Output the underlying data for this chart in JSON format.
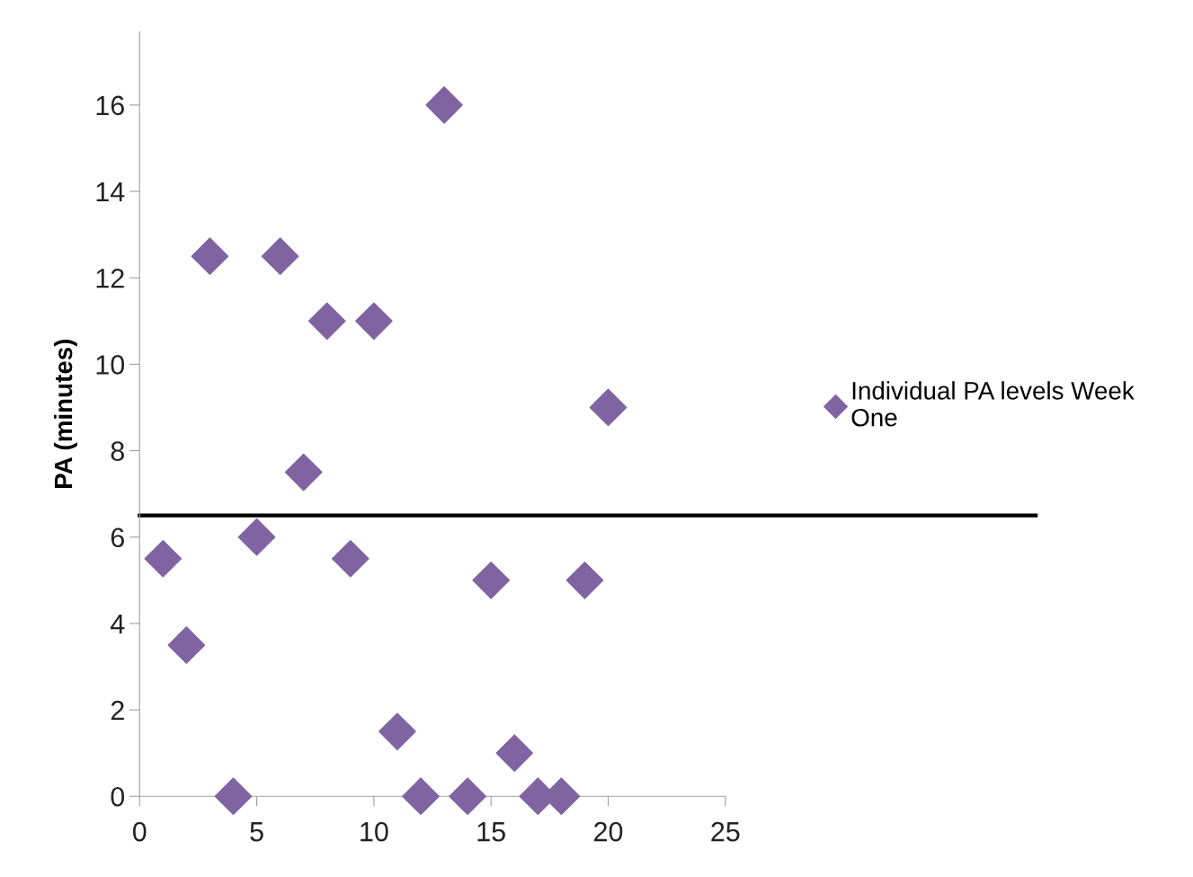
{
  "chart_data": {
    "type": "scatter",
    "ylabel": "PA (minutes)",
    "series": [
      {
        "name": "Individual PA levels Week One",
        "color": "#8064a2",
        "x": [
          1,
          2,
          3,
          4,
          5,
          6,
          7,
          8,
          9,
          10,
          11,
          12,
          13,
          14,
          15,
          16,
          17,
          18,
          19,
          20
        ],
        "values": [
          5.5,
          3.5,
          12.5,
          0,
          6,
          12.5,
          7.5,
          11,
          5.5,
          11,
          1.5,
          0,
          16,
          0,
          5,
          1,
          0,
          0,
          5,
          9
        ]
      }
    ],
    "xlim": [
      0,
      25
    ],
    "xticks": [
      0,
      5,
      10,
      15,
      20,
      25
    ],
    "ylim": [
      0,
      17.7
    ],
    "yticks": [
      0,
      2,
      4,
      6,
      8,
      10,
      12,
      14,
      16
    ],
    "ref_lines": [
      {
        "axis": "y",
        "value": 6.5,
        "color": "#000000",
        "line_style": "solid"
      }
    ],
    "marker": "diamond",
    "legend": "right",
    "grid": false
  }
}
